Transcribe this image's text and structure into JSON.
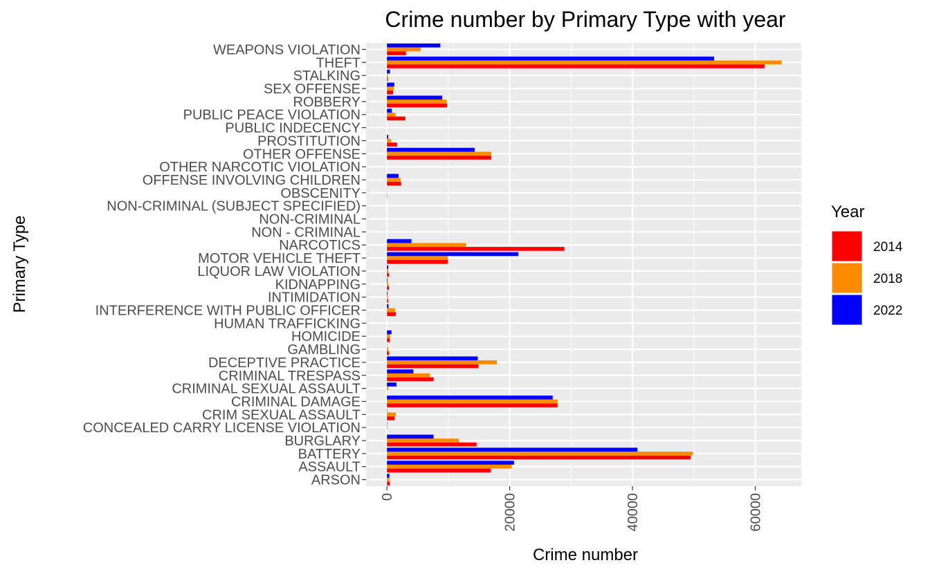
{
  "chart_data": {
    "type": "bar",
    "orientation": "horizontal",
    "title": "Crime number by Primary Type with year",
    "xlabel": "Crime number",
    "ylabel": "Primary Type",
    "xlim": [
      -3400,
      67500
    ],
    "xticks": [
      0,
      20000,
      40000,
      60000
    ],
    "grid": true,
    "legend": {
      "title": "Year",
      "position": "right"
    },
    "categories": [
      "ARSON",
      "ASSAULT",
      "BATTERY",
      "BURGLARY",
      "CONCEALED CARRY LICENSE VIOLATION",
      "CRIM SEXUAL ASSAULT",
      "CRIMINAL DAMAGE",
      "CRIMINAL SEXUAL ASSAULT",
      "CRIMINAL TRESPASS",
      "DECEPTIVE PRACTICE",
      "GAMBLING",
      "HOMICIDE",
      "HUMAN TRAFFICKING",
      "INTERFERENCE WITH PUBLIC OFFICER",
      "INTIMIDATION",
      "KIDNAPPING",
      "LIQUOR LAW VIOLATION",
      "MOTOR VEHICLE THEFT",
      "NARCOTICS",
      "NON - CRIMINAL",
      "NON-CRIMINAL",
      "NON-CRIMINAL (SUBJECT SPECIFIED)",
      "OBSCENITY",
      "OFFENSE INVOLVING CHILDREN",
      "OTHER NARCOTIC VIOLATION",
      "OTHER OFFENSE",
      "PROSTITUTION",
      "PUBLIC INDECENCY",
      "PUBLIC PEACE VIOLATION",
      "ROBBERY",
      "SEX OFFENSE",
      "STALKING",
      "THEFT",
      "WEAPONS VIOLATION"
    ],
    "series": [
      {
        "name": "2014",
        "color": "#ff0000",
        "values": [
          450,
          16900,
          49500,
          14600,
          0,
          1250,
          27800,
          0,
          7600,
          14900,
          350,
          450,
          10,
          1450,
          180,
          330,
          350,
          9900,
          28900,
          5,
          5,
          5,
          50,
          2300,
          10,
          17000,
          1650,
          10,
          3000,
          9800,
          1000,
          150,
          61500,
          3100
        ]
      },
      {
        "name": "2018",
        "color": "#ff8c00",
        "values": [
          400,
          20300,
          49800,
          11700,
          100,
          1450,
          27800,
          200,
          7000,
          17900,
          200,
          500,
          10,
          1300,
          150,
          200,
          200,
          9900,
          12900,
          5,
          5,
          5,
          50,
          2200,
          10,
          17000,
          650,
          10,
          1400,
          9700,
          1100,
          150,
          64300,
          5500
        ]
      },
      {
        "name": "2022",
        "color": "#0000ff",
        "values": [
          400,
          20700,
          40800,
          7600,
          50,
          50,
          27000,
          1550,
          4300,
          14800,
          30,
          750,
          10,
          250,
          100,
          100,
          200,
          21400,
          4000,
          5,
          5,
          5,
          20,
          1900,
          5,
          14300,
          200,
          5,
          800,
          9000,
          1200,
          500,
          53300,
          8700
        ]
      }
    ]
  }
}
